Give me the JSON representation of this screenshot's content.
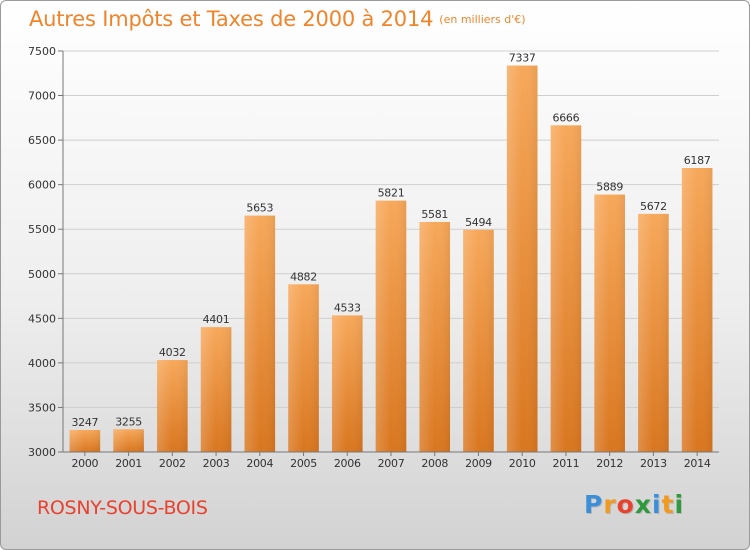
{
  "header": {
    "title": "Autres Impôts et Taxes de 2000 à 2014",
    "unit": "(en milliers d'€)"
  },
  "footer": {
    "city": "ROSNY-SOUS-BOIS",
    "brand_letters": [
      "P",
      "r",
      "o",
      "x",
      "i",
      "t",
      "i"
    ],
    "brand_colors": [
      "#3a8fd8",
      "#f29a1f",
      "#e8422e",
      "#2f9a3d",
      "#3a8fd8",
      "#f29a1f",
      "#2f9a3d"
    ]
  },
  "chart_data": {
    "type": "bar",
    "title": "Autres Impôts et Taxes de 2000 à 2014",
    "xlabel": "",
    "ylabel": "",
    "categories": [
      "2000",
      "2001",
      "2002",
      "2003",
      "2004",
      "2005",
      "2006",
      "2007",
      "2008",
      "2009",
      "2010",
      "2011",
      "2012",
      "2013",
      "2014"
    ],
    "values": [
      3247,
      3255,
      4032,
      4401,
      5653,
      4882,
      4533,
      5821,
      5581,
      5494,
      7337,
      6666,
      5889,
      5672,
      6187
    ],
    "ylim": [
      3000,
      7500
    ],
    "yticks": [
      3000,
      3500,
      4000,
      4500,
      5000,
      5500,
      6000,
      6500,
      7000,
      7500
    ],
    "grid": true,
    "legend": "none",
    "bar_color_top": "#f7a85a",
    "bar_color_bottom": "#d9761f"
  }
}
